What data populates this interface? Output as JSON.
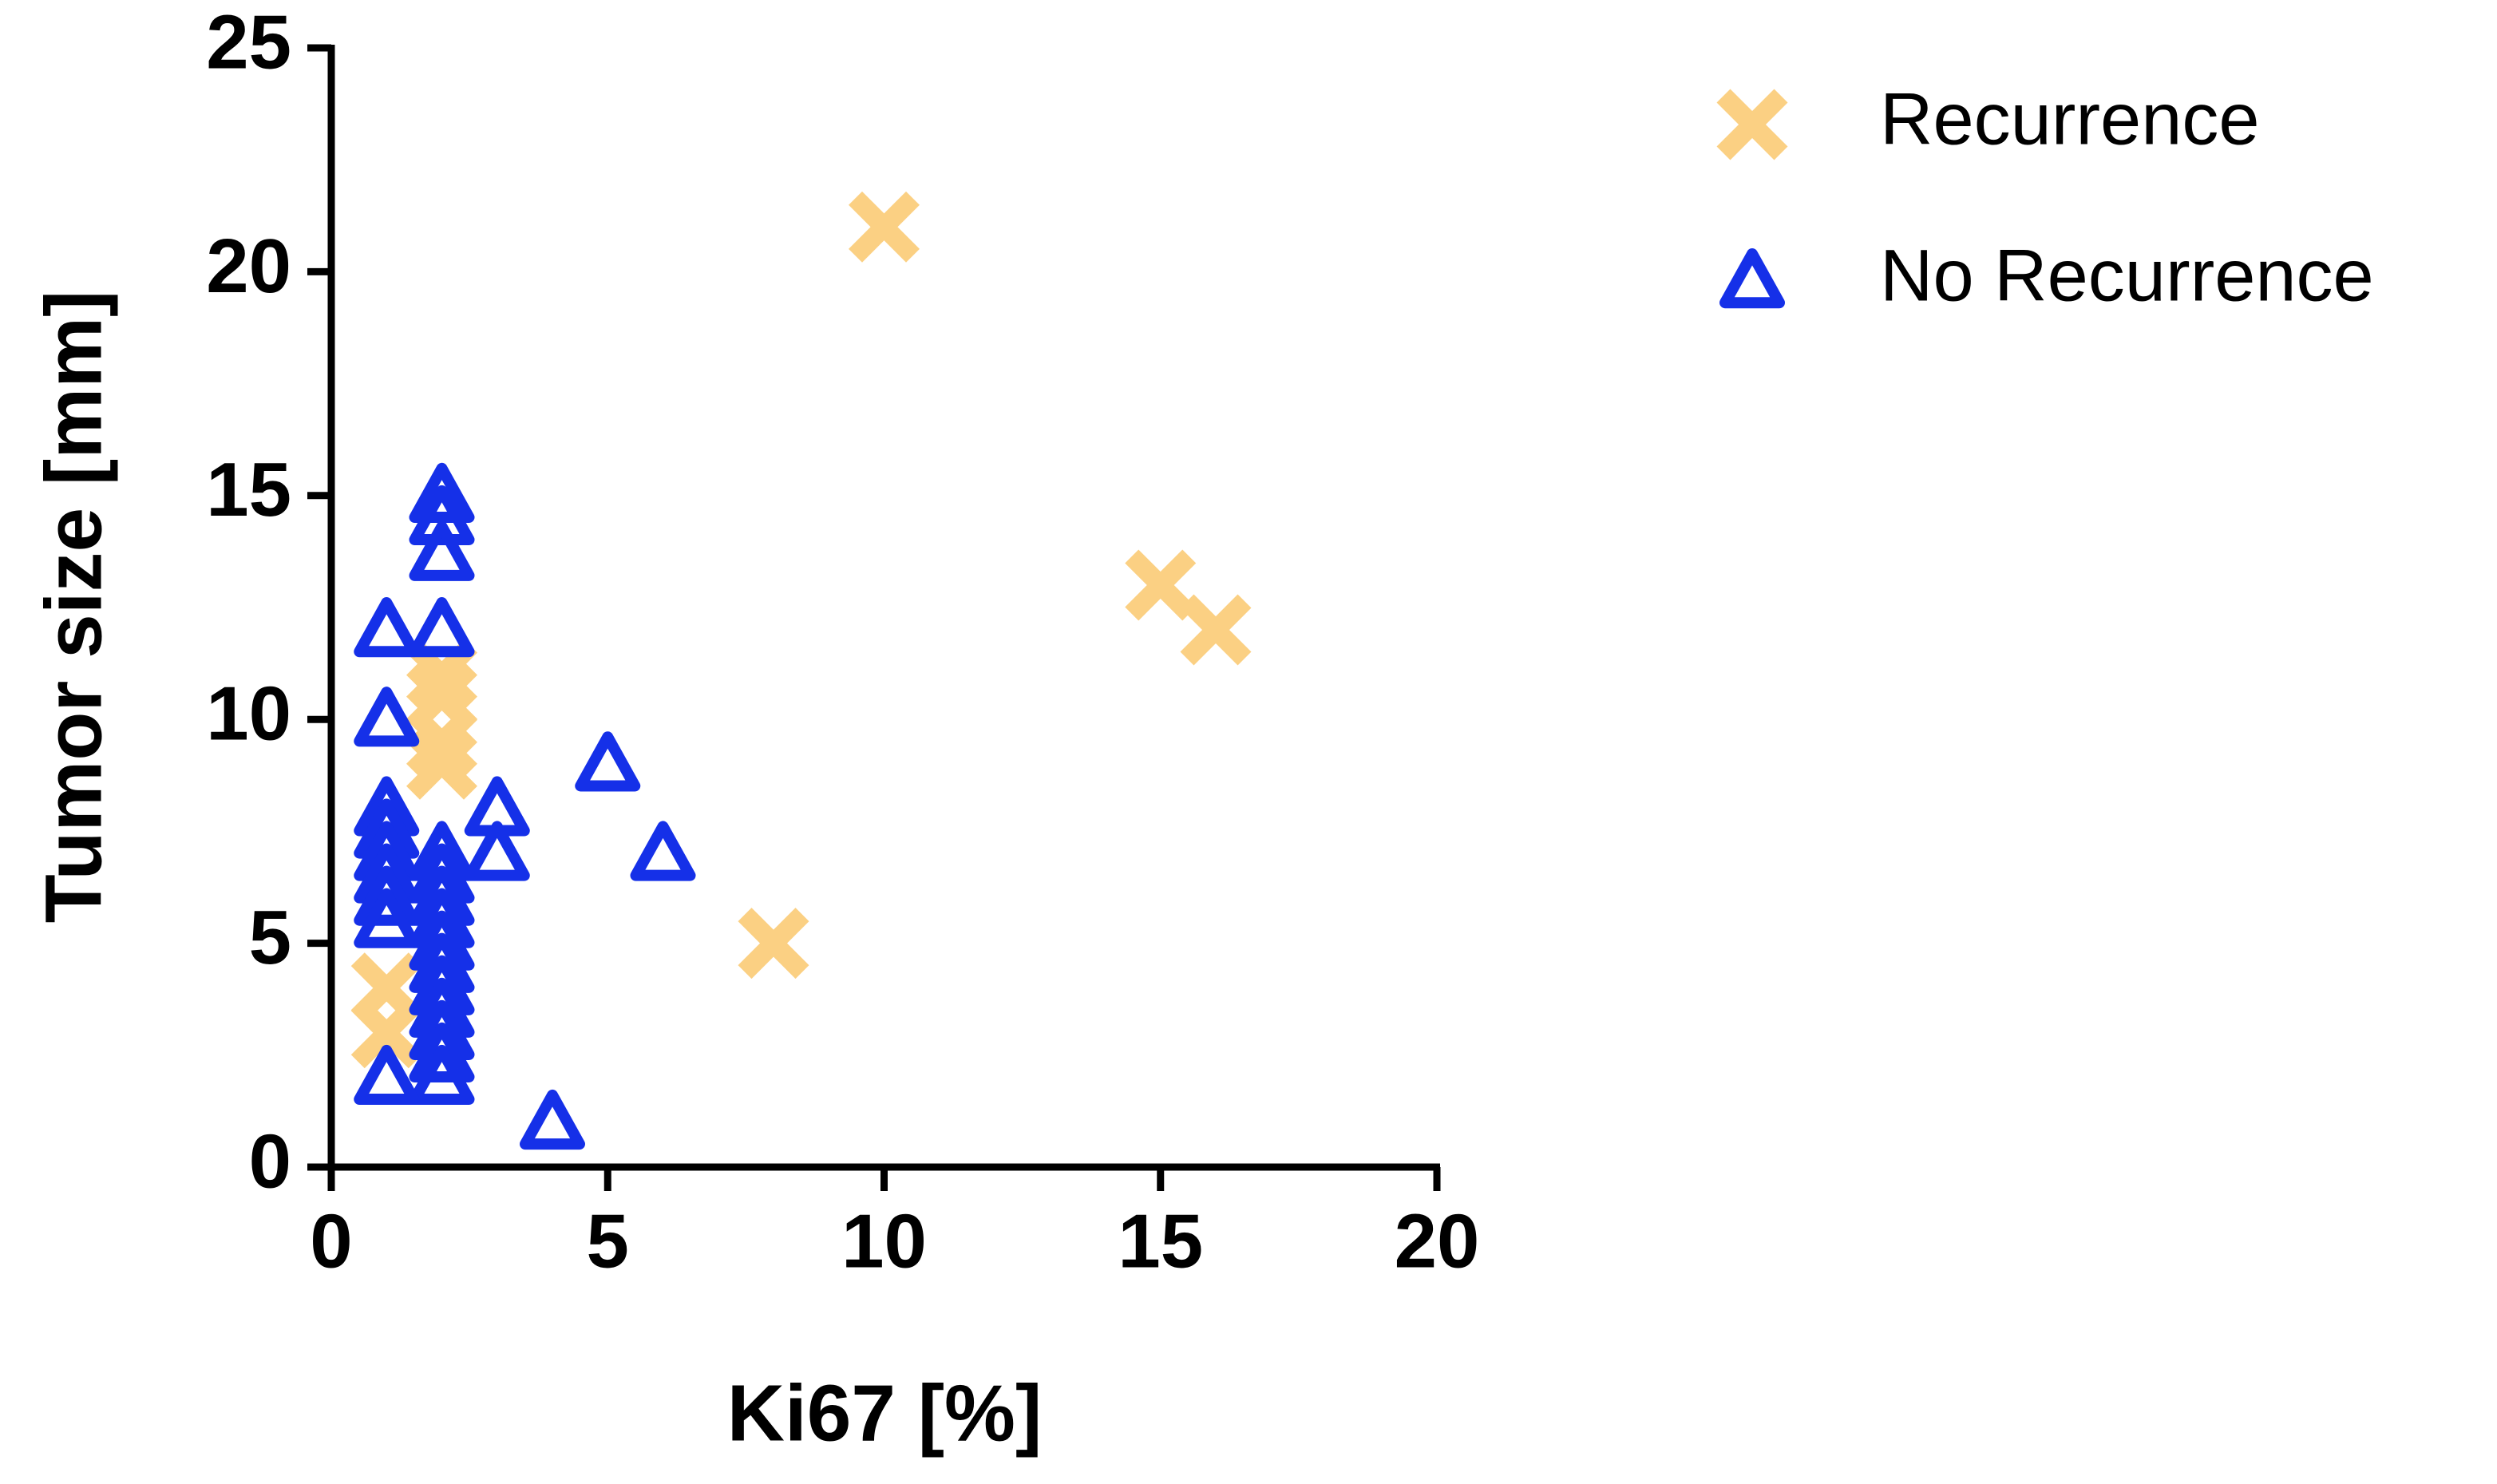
{
  "chart_data": {
    "type": "scatter",
    "x_label": "Ki67 [%]",
    "y_label": "Tumor size [mm]",
    "xlim": [
      0,
      20
    ],
    "xticks": [
      0,
      5,
      10,
      15,
      20
    ],
    "ylim": [
      0,
      25
    ],
    "yticks": [
      0,
      5,
      10,
      15,
      20,
      25
    ],
    "series": [
      {
        "name": "Recurrence",
        "marker": "x",
        "color": "#fbd083",
        "x": [
          10,
          15,
          16,
          8,
          2,
          2,
          2,
          2,
          1,
          1
        ],
        "values": [
          21,
          13,
          12,
          5,
          11,
          10.5,
          9.5,
          9,
          4,
          3
        ]
      },
      {
        "name": "No Recurrence",
        "marker": "triangle",
        "color": "#1530e8",
        "x": [
          2,
          2,
          2,
          1,
          2,
          1,
          5,
          3,
          3,
          6,
          1,
          1,
          1,
          1,
          1,
          1,
          2,
          2,
          2,
          2,
          2,
          2,
          2,
          2,
          2,
          2,
          2,
          1,
          4
        ],
        "values": [
          15,
          14.5,
          13.7,
          12,
          12,
          10,
          9,
          8,
          7,
          7,
          8,
          7.5,
          7,
          6.5,
          6,
          5.5,
          7,
          6.5,
          6,
          5.5,
          5,
          4.5,
          4,
          3.5,
          3,
          2.5,
          2,
          2,
          1
        ]
      }
    ]
  }
}
